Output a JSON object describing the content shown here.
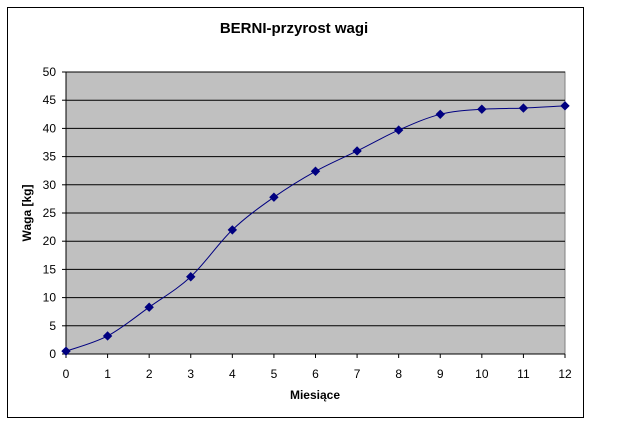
{
  "chart_data": {
    "type": "line",
    "title": "BERNI-przyrost wagi",
    "xlabel": "Miesiące",
    "ylabel": "Waga [kg]",
    "x": [
      0,
      1,
      2,
      3,
      4,
      5,
      6,
      7,
      8,
      9,
      10,
      11,
      12
    ],
    "series": [
      {
        "values": [
          0.5,
          3.2,
          8.3,
          13.7,
          22.0,
          27.8,
          32.4,
          36.0,
          39.7,
          42.5,
          43.4,
          43.6,
          44.0
        ]
      }
    ],
    "xlim": [
      0,
      12
    ],
    "ylim": [
      0,
      50
    ],
    "yticks": [
      0,
      5,
      10,
      15,
      20,
      25,
      30,
      35,
      40,
      45,
      50
    ],
    "grid": true,
    "legend": "none",
    "plot_bg": "#c0c0c0",
    "line_color": "#000080"
  }
}
